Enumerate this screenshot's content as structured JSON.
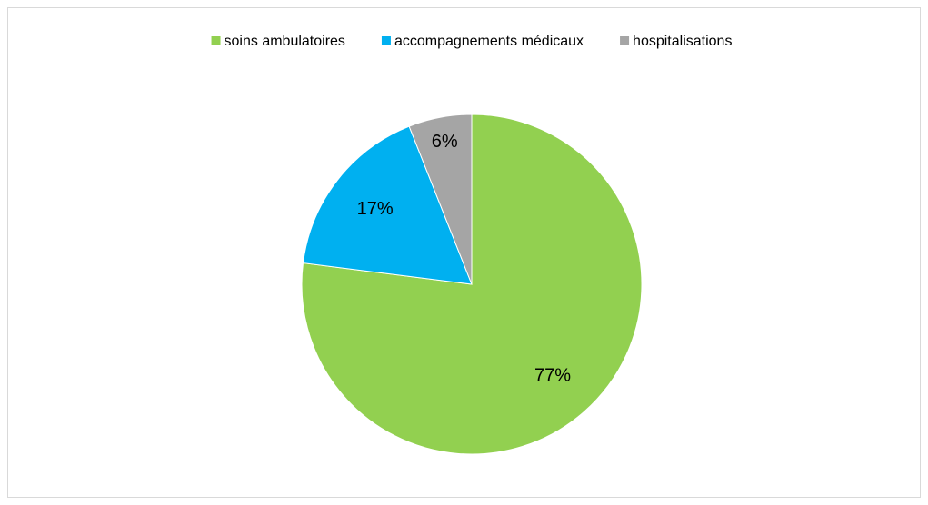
{
  "chart_data": {
    "type": "pie",
    "categories": [
      "soins ambulatoires",
      "accompagnements médicaux",
      "hospitalisations"
    ],
    "values": [
      77,
      17,
      6
    ],
    "value_labels": [
      "77%",
      "17%",
      "6%"
    ],
    "colors": [
      "#92d050",
      "#00b0f0",
      "#a5a5a5"
    ],
    "legend": "top"
  }
}
